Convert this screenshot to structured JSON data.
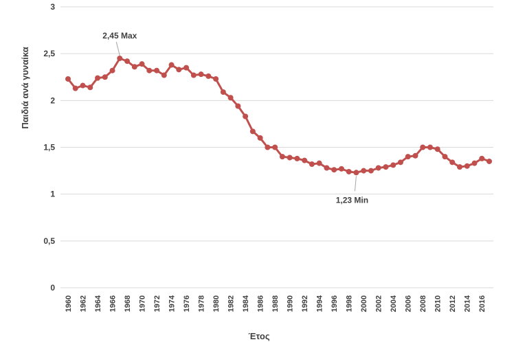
{
  "chart_data": {
    "type": "line",
    "title": "",
    "xlabel": "Έτος",
    "ylabel": "Παιδιά  ανά γυναίκα",
    "ylim": [
      0,
      3
    ],
    "yticks": [
      "0",
      "0,5",
      "1",
      "1,5",
      "2",
      "2,5",
      "3"
    ],
    "grid": true,
    "legend": "none",
    "x_tick_labels": [
      "1960",
      "1962",
      "1964",
      "1966",
      "1968",
      "1970",
      "1972",
      "1974",
      "1976",
      "1978",
      "1980",
      "1982",
      "1984",
      "1986",
      "1988",
      "1990",
      "1992",
      "1994",
      "1996",
      "1998",
      "2000",
      "2002",
      "2004",
      "2006",
      "2008",
      "2010",
      "2012",
      "2014",
      "2016"
    ],
    "line_color": "#c0504d",
    "series": [
      {
        "x": [
          1960,
          1961,
          1962,
          1963,
          1964,
          1965,
          1966,
          1967,
          1968,
          1969,
          1970,
          1971,
          1972,
          1973,
          1974,
          1975,
          1976,
          1977,
          1978,
          1979,
          1980,
          1981,
          1982,
          1983,
          1984,
          1985,
          1986,
          1987,
          1988,
          1989,
          1990,
          1991,
          1992,
          1993,
          1994,
          1995,
          1996,
          1997,
          1998,
          1999,
          2000,
          2001,
          2002,
          2003,
          2004,
          2005,
          2006,
          2007,
          2008,
          2009,
          2010,
          2011,
          2012,
          2013,
          2014,
          2015,
          2016,
          2017
        ],
        "values": [
          2.23,
          2.13,
          2.16,
          2.14,
          2.24,
          2.25,
          2.32,
          2.45,
          2.42,
          2.36,
          2.39,
          2.32,
          2.32,
          2.27,
          2.38,
          2.33,
          2.35,
          2.27,
          2.28,
          2.26,
          2.23,
          2.09,
          2.03,
          1.94,
          1.83,
          1.67,
          1.6,
          1.5,
          1.5,
          1.4,
          1.39,
          1.38,
          1.36,
          1.32,
          1.33,
          1.28,
          1.26,
          1.27,
          1.24,
          1.23,
          1.25,
          1.25,
          1.28,
          1.29,
          1.31,
          1.34,
          1.4,
          1.41,
          1.5,
          1.5,
          1.48,
          1.4,
          1.34,
          1.29,
          1.3,
          1.33,
          1.38,
          1.35
        ]
      }
    ],
    "annotations": [
      {
        "text": "2,45 Max",
        "x": 1967,
        "y": 2.45
      },
      {
        "text": "1,23 Min",
        "x": 1999,
        "y": 1.23
      }
    ]
  }
}
